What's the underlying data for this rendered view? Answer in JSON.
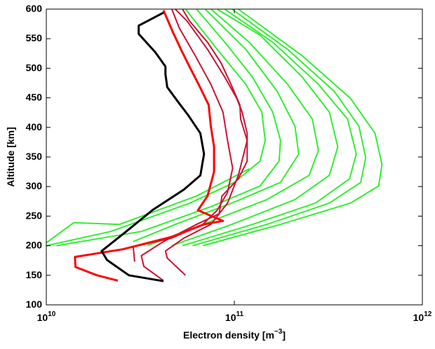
{
  "chart_data": {
    "type": "line",
    "x_label": "Electron density [m^{−3}]",
    "y_label": "Altitude [km]",
    "x_scale": "log",
    "xlim": [
      10000000000,
      1000000000000
    ],
    "ylim": [
      100,
      600
    ],
    "xticks": [
      {
        "value": 10000000000,
        "label": "10^{10}"
      },
      {
        "value": 100000000000,
        "label": "10^{11}"
      },
      {
        "value": 1000000000000,
        "label": "10^{12}"
      }
    ],
    "yticks": [
      100,
      150,
      200,
      250,
      300,
      350,
      400,
      450,
      500,
      550,
      600
    ],
    "grid": false,
    "series": [
      {
        "color": "#33ee33",
        "line_width": 2,
        "x": [
          10000000000.0,
          22000000000.0,
          58000000000.0,
          100000000000.0,
          137000000000.0,
          146000000000.0,
          140000000000.0,
          115000000000.0,
          81000000000.0,
          55000000000.0
        ],
        "y": [
          200,
          224,
          272,
          307,
          343,
          378,
          426,
          473,
          532,
          600
        ]
      },
      {
        "color": "#33ee33",
        "line_width": 2,
        "x": [
          10000000000.0,
          14000000000.0,
          24500000000.0,
          63000000000.0,
          120000000000.0
        ],
        "y": [
          205,
          239,
          236,
          284,
          330
        ]
      },
      {
        "color": "#33ee33",
        "line_width": 2,
        "x": [
          11300000000.0,
          32000000000.0,
          75000000000.0,
          137000000000.0,
          173000000000.0,
          176000000000.0,
          160000000000.0,
          125000000000.0,
          89000000000.0,
          63000000000.0
        ],
        "y": [
          200,
          224,
          266,
          301,
          343,
          378,
          426,
          485,
          544,
          600
        ]
      },
      {
        "color": "#33ee33",
        "line_width": 2,
        "x": [
          29000000000.0,
          48500000000.0,
          97000000000.0,
          176000000000.0,
          220000000000.0,
          210000000000.0,
          169000000000.0,
          115000000000.0,
          70000000000.0
        ],
        "y": [
          207,
          236,
          272,
          307,
          355,
          402,
          461,
          532,
          600
        ]
      },
      {
        "color": "#33ee33",
        "line_width": 2,
        "x": [
          34500000000.0,
          68000000000.0,
          149000000000.0,
          250000000000.0,
          280000000000.0,
          260000000000.0,
          192000000000.0,
          120000000000.0,
          75000000000.0
        ],
        "y": [
          200,
          236,
          278,
          319,
          361,
          414,
          473,
          544,
          600
        ]
      },
      {
        "color": "#33ee33",
        "line_width": 2,
        "x": [
          46500000000.0,
          97000000000.0,
          210000000000.0,
          320000000000.0,
          355000000000.0,
          320000000000.0,
          230000000000.0,
          137000000000.0,
          81000000000.0
        ],
        "y": [
          200,
          236,
          278,
          319,
          367,
          426,
          485,
          556,
          600
        ]
      },
      {
        "color": "#33ee33",
        "line_width": 2,
        "x": [
          53000000000.0,
          125000000000.0,
          270000000000.0,
          410000000000.0,
          445000000000.0,
          400000000000.0,
          280000000000.0,
          160000000000.0,
          89000000000.0
        ],
        "y": [
          200,
          236,
          272,
          313,
          355,
          414,
          473,
          544,
          600
        ]
      },
      {
        "color": "#33ee33",
        "line_width": 2,
        "x": [
          60000000000.0,
          149000000000.0,
          320000000000.0,
          470000000000.0,
          500000000000.0,
          460000000000.0,
          340000000000.0,
          192000000000.0,
          97000000000.0
        ],
        "y": [
          200,
          236,
          272,
          307,
          349,
          402,
          461,
          532,
          600
        ]
      },
      {
        "color": "#33ee33",
        "line_width": 2,
        "x": [
          68000000000.0,
          176000000000.0,
          415000000000.0,
          585000000000.0,
          610000000000.0,
          560000000000.0,
          415000000000.0,
          230000000000.0,
          105000000000.0
        ],
        "y": [
          200,
          236,
          272,
          301,
          337,
          390,
          449,
          521,
          600
        ]
      },
      {
        "color": "#cc1133",
        "line_width": 2,
        "x": [
          55000000000.0,
          44000000000.0,
          43000000000.0,
          54000000000.0,
          75000000000.0,
          92000000000.0,
          105000000000.0,
          117000000000.0,
          108000000000.0,
          107000000000.0,
          96000000000.0,
          85000000000.0,
          72000000000.0,
          57700000000.0,
          53000000000.0
        ],
        "y": [
          150,
          179,
          191,
          213,
          236,
          272,
          319,
          378,
          414,
          438,
          473,
          509,
          544,
          580,
          600
        ]
      },
      {
        "color": "#cc1133",
        "line_width": 2,
        "x": [
          42000000000.0,
          33000000000.0,
          32000000000.0,
          42000000000.0,
          63000000000.0,
          83000000000.0,
          86000000000.0,
          105000000000.0,
          117000000000.0,
          117000000000.0,
          110000000000.0,
          103000000000.0,
          89000000000.0,
          72000000000.0,
          56000000000.0,
          48500000000.0
        ],
        "y": [
          141,
          165,
          183,
          207,
          236,
          254,
          284,
          313,
          343,
          390,
          426,
          449,
          485,
          532,
          580,
          600
        ]
      },
      {
        "color": "#cc1133",
        "line_width": 2,
        "x": [
          29500000000.0,
          29000000000.0,
          46500000000.0,
          68000000000.0,
          81000000000.0,
          92000000000.0,
          98000000000.0,
          92000000000.0,
          87000000000.0,
          75000000000.0,
          62000000000.0,
          51000000000.0,
          46500000000.0
        ],
        "y": [
          173,
          198,
          213,
          236,
          260,
          290,
          331,
          378,
          426,
          473,
          521,
          568,
          600
        ]
      },
      {
        "color": "#ff0000",
        "line_width": 3,
        "x": [
          24000000000.0,
          18600000000.0,
          14300000000.0,
          14200000000.0,
          25500000000.0,
          46500000000.0,
          69000000000.0,
          87000000000.0,
          64000000000.0,
          72000000000.0,
          78000000000.0,
          78000000000.0,
          75000000000.0,
          73000000000.0,
          64500000000.0,
          57700000000.0,
          52000000000.0,
          47000000000.0,
          42000000000.0
        ],
        "y": [
          141,
          150,
          164,
          181,
          194,
          215,
          236,
          242,
          260,
          284,
          325,
          367,
          402,
          438,
          473,
          503,
          532,
          562,
          598
        ]
      },
      {
        "color": "#000000",
        "line_width": 3,
        "x": [
          42000000000.0,
          27500000000.0,
          21000000000.0,
          19700000000.0,
          26600000000.0,
          37000000000.0,
          54000000000.0,
          66000000000.0,
          69000000000.0,
          66000000000.0,
          57000000000.0,
          50000000000.0,
          44000000000.0,
          43000000000.0,
          43000000000.0,
          38000000000.0,
          31000000000.0,
          31000000000.0,
          42000000000.0
        ],
        "y": [
          140,
          150,
          176,
          191,
          224,
          261,
          295,
          319,
          355,
          390,
          420,
          444,
          468,
          490,
          503,
          527,
          558,
          572,
          594
        ]
      }
    ]
  }
}
